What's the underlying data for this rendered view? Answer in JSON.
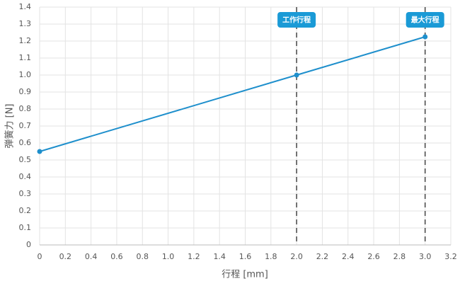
{
  "chart_data": {
    "type": "line",
    "x_label": "行程 [mm]",
    "y_label": "弾簧力 [N]",
    "x": [
      0,
      2,
      3
    ],
    "values": [
      0.55,
      1.0,
      1.225
    ],
    "color": "#1e8fcc",
    "xlim": [
      0,
      3.2
    ],
    "xticks": [
      0,
      0.2,
      0.4,
      0.6,
      0.8,
      {
        "value": 1,
        "label": "1.0"
      },
      1.2,
      1.4,
      1.6,
      1.8,
      {
        "value": 2,
        "label": "2.0"
      },
      2.2,
      2.4,
      2.6,
      2.8,
      {
        "value": 3,
        "label": "3.0"
      },
      3.2
    ],
    "ylim": [
      0,
      1.4
    ],
    "yticks": [
      0,
      0.1,
      0.2,
      0.3,
      0.4,
      0.5,
      0.6,
      0.7,
      0.8,
      0.9,
      {
        "value": 1,
        "label": "1.0"
      },
      1.1,
      1.2,
      1.3,
      1.4
    ],
    "grid": true,
    "annotations": [
      {
        "x": 2,
        "label": "工作行程"
      },
      {
        "x": 3,
        "label": "最大行程"
      }
    ],
    "annotation_color": "#1a9ad6"
  }
}
